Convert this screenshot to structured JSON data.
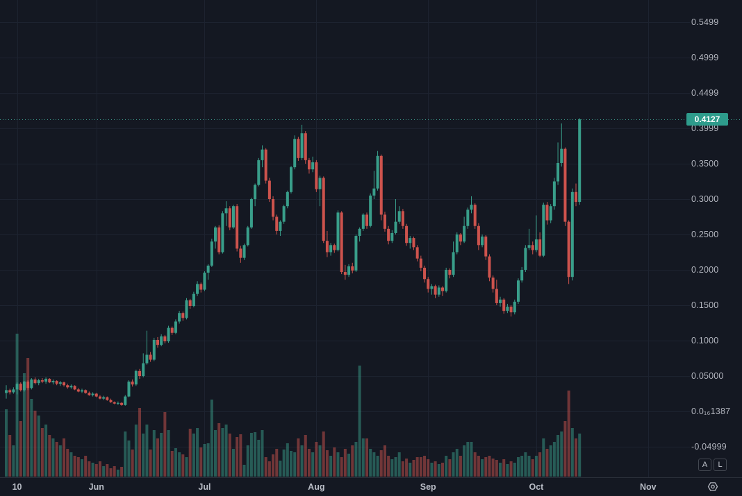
{
  "colors": {
    "background": "#141822",
    "grid": "#1d2330",
    "separator": "#2a2f3a",
    "axis_text": "#b2b5be",
    "up": "#399e8a",
    "down": "#cd534d",
    "up_volume": "rgba(57,158,138,0.50)",
    "down_volume": "rgba(205,83,77,0.50)",
    "price_line": "#3f9f90",
    "badge_bg": "#2e9c8c",
    "badge_text": "#ffffff"
  },
  "price_axis": {
    "labels": [
      {
        "text": "0.5499",
        "value": 0.5499
      },
      {
        "text": "0.4999",
        "value": 0.4999
      },
      {
        "text": "0.4499",
        "value": 0.4499
      },
      {
        "text": "0.3999",
        "value": 0.3999
      },
      {
        "text": "0.3500",
        "value": 0.35
      },
      {
        "text": "0.3000",
        "value": 0.3
      },
      {
        "text": "0.2500",
        "value": 0.25
      },
      {
        "text": "0.2000",
        "value": 0.2
      },
      {
        "text": "0.1500",
        "value": 0.15
      },
      {
        "text": "0.1000",
        "value": 0.1
      },
      {
        "text": "0.05000",
        "value": 0.05
      },
      {
        "text": "0.0₁₆1387",
        "value": 0.0
      },
      {
        "text": "-0.04999",
        "value": -0.04999
      }
    ],
    "current_price": {
      "text": "0.4127",
      "value": 0.4127
    }
  },
  "time_axis": {
    "ticks": [
      {
        "label": "10",
        "day": 3
      },
      {
        "label": "Jun",
        "day": 25
      },
      {
        "label": "Jul",
        "day": 55
      },
      {
        "label": "Aug",
        "day": 86
      },
      {
        "label": "Sep",
        "day": 117
      },
      {
        "label": "Oct",
        "day": 147
      },
      {
        "label": "Nov",
        "day": 178
      }
    ]
  },
  "controls": {
    "auto_label": "A",
    "log_label": "L",
    "settings_icon": "gear-icon"
  },
  "chart_data": {
    "type": "candlestick+volume",
    "title": "",
    "ohlc_columns": [
      "date",
      "open",
      "high",
      "low",
      "close",
      "volume"
    ],
    "x_range": [
      "May 7",
      "Oct 13"
    ],
    "y_range": [
      -0.05,
      0.55
    ],
    "grid": true,
    "last_price": 0.4127,
    "candles": [
      [
        "May 7",
        0.026,
        0.037,
        0.018,
        0.03,
        97
      ],
      [
        "May 8",
        0.03,
        0.032,
        0.024,
        0.027,
        60
      ],
      [
        "May 9",
        0.027,
        0.034,
        0.025,
        0.031,
        45
      ],
      [
        "May 10",
        0.031,
        0.041,
        0.024,
        0.039,
        206
      ],
      [
        "May 11",
        0.039,
        0.041,
        0.028,
        0.03,
        80
      ],
      [
        "May 12",
        0.03,
        0.043,
        0.028,
        0.042,
        149
      ],
      [
        "May 13",
        0.042,
        0.044,
        0.03,
        0.033,
        171
      ],
      [
        "May 14",
        0.033,
        0.047,
        0.031,
        0.045,
        112
      ],
      [
        "May 15",
        0.045,
        0.048,
        0.038,
        0.04,
        95
      ],
      [
        "May 16",
        0.04,
        0.046,
        0.037,
        0.044,
        88
      ],
      [
        "May 17",
        0.044,
        0.047,
        0.04,
        0.042,
        70
      ],
      [
        "May 18",
        0.042,
        0.048,
        0.039,
        0.046,
        75
      ],
      [
        "May 19",
        0.046,
        0.047,
        0.04,
        0.041,
        60
      ],
      [
        "May 20",
        0.041,
        0.045,
        0.038,
        0.043,
        55
      ],
      [
        "May 21",
        0.043,
        0.044,
        0.037,
        0.039,
        50
      ],
      [
        "May 22",
        0.039,
        0.043,
        0.036,
        0.041,
        45
      ],
      [
        "May 23",
        0.041,
        0.042,
        0.035,
        0.037,
        55
      ],
      [
        "May 24",
        0.037,
        0.039,
        0.032,
        0.034,
        40
      ],
      [
        "May 25",
        0.034,
        0.038,
        0.032,
        0.036,
        35
      ],
      [
        "May 26",
        0.036,
        0.037,
        0.03,
        0.031,
        30
      ],
      [
        "May 27",
        0.031,
        0.033,
        0.027,
        0.028,
        28
      ],
      [
        "May 28",
        0.028,
        0.032,
        0.026,
        0.03,
        25
      ],
      [
        "May 29",
        0.03,
        0.031,
        0.025,
        0.026,
        30
      ],
      [
        "May 30",
        0.026,
        0.028,
        0.022,
        0.023,
        22
      ],
      [
        "May 31",
        0.023,
        0.027,
        0.021,
        0.025,
        20
      ],
      [
        "Jun 1",
        0.025,
        0.026,
        0.02,
        0.021,
        18
      ],
      [
        "Jun 2",
        0.021,
        0.023,
        0.017,
        0.018,
        22
      ],
      [
        "Jun 3",
        0.018,
        0.022,
        0.016,
        0.02,
        15
      ],
      [
        "Jun 4",
        0.02,
        0.021,
        0.015,
        0.016,
        18
      ],
      [
        "Jun 5",
        0.016,
        0.018,
        0.012,
        0.013,
        12
      ],
      [
        "Jun 6",
        0.013,
        0.014,
        0.01,
        0.011,
        15
      ],
      [
        "Jun 7",
        0.011,
        0.014,
        0.009,
        0.012,
        10
      ],
      [
        "Jun 8",
        0.012,
        0.013,
        0.008,
        0.009,
        14
      ],
      [
        "Jun 9",
        0.009,
        0.023,
        0.008,
        0.021,
        65
      ],
      [
        "Jun 10",
        0.021,
        0.044,
        0.02,
        0.042,
        52
      ],
      [
        "Jun 11",
        0.042,
        0.045,
        0.035,
        0.038,
        39
      ],
      [
        "Jun 12",
        0.038,
        0.059,
        0.036,
        0.057,
        75
      ],
      [
        "Jun 13",
        0.057,
        0.06,
        0.046,
        0.05,
        99
      ],
      [
        "Jun 14",
        0.05,
        0.082,
        0.048,
        0.068,
        62
      ],
      [
        "Jun 15",
        0.068,
        0.114,
        0.066,
        0.08,
        75
      ],
      [
        "Jun 16",
        0.08,
        0.084,
        0.07,
        0.073,
        39
      ],
      [
        "Jun 17",
        0.073,
        0.104,
        0.071,
        0.101,
        67
      ],
      [
        "Jun 18",
        0.101,
        0.105,
        0.09,
        0.094,
        55
      ],
      [
        "Jun 19",
        0.094,
        0.109,
        0.092,
        0.106,
        63
      ],
      [
        "Jun 20",
        0.106,
        0.108,
        0.096,
        0.099,
        93
      ],
      [
        "Jun 21",
        0.099,
        0.121,
        0.097,
        0.118,
        67
      ],
      [
        "Jun 22",
        0.118,
        0.12,
        0.108,
        0.111,
        37
      ],
      [
        "Jun 23",
        0.111,
        0.13,
        0.109,
        0.127,
        41
      ],
      [
        "Jun 24",
        0.127,
        0.142,
        0.124,
        0.139,
        35
      ],
      [
        "Jun 25",
        0.139,
        0.141,
        0.128,
        0.132,
        32
      ],
      [
        "Jun 26",
        0.132,
        0.16,
        0.13,
        0.157,
        28
      ],
      [
        "Jun 27",
        0.157,
        0.159,
        0.145,
        0.149,
        69
      ],
      [
        "Jun 28",
        0.149,
        0.169,
        0.147,
        0.166,
        62
      ],
      [
        "Jun 29",
        0.166,
        0.184,
        0.163,
        0.18,
        70
      ],
      [
        "Jun 30",
        0.18,
        0.182,
        0.168,
        0.172,
        42
      ],
      [
        "Jul 1",
        0.172,
        0.198,
        0.17,
        0.196,
        47
      ],
      [
        "Jul 2",
        0.196,
        0.208,
        0.186,
        0.206,
        48
      ],
      [
        "Jul 3",
        0.206,
        0.244,
        0.204,
        0.24,
        111
      ],
      [
        "Jul 4",
        0.24,
        0.262,
        0.23,
        0.26,
        67
      ],
      [
        "Jul 5",
        0.26,
        0.263,
        0.222,
        0.225,
        77
      ],
      [
        "Jul 6",
        0.225,
        0.283,
        0.223,
        0.28,
        70
      ],
      [
        "Jul 7",
        0.28,
        0.297,
        0.262,
        0.287,
        75
      ],
      [
        "Jul 8",
        0.287,
        0.29,
        0.256,
        0.26,
        62
      ],
      [
        "Jul 9",
        0.26,
        0.292,
        0.258,
        0.29,
        40
      ],
      [
        "Jul 10",
        0.29,
        0.293,
        0.226,
        0.23,
        57
      ],
      [
        "Jul 11",
        0.23,
        0.234,
        0.21,
        0.217,
        61
      ],
      [
        "Jul 12",
        0.217,
        0.237,
        0.214,
        0.235,
        17
      ],
      [
        "Jul 13",
        0.235,
        0.262,
        0.233,
        0.26,
        45
      ],
      [
        "Jul 14",
        0.26,
        0.302,
        0.258,
        0.3,
        63
      ],
      [
        "Jul 15",
        0.3,
        0.322,
        0.29,
        0.32,
        64
      ],
      [
        "Jul 16",
        0.32,
        0.358,
        0.318,
        0.355,
        53
      ],
      [
        "Jul 17",
        0.355,
        0.376,
        0.345,
        0.37,
        67
      ],
      [
        "Jul 18",
        0.37,
        0.372,
        0.322,
        0.326,
        28
      ],
      [
        "Jul 19",
        0.326,
        0.33,
        0.296,
        0.3,
        22
      ],
      [
        "Jul 20",
        0.3,
        0.304,
        0.27,
        0.275,
        32
      ],
      [
        "Jul 21",
        0.275,
        0.278,
        0.25,
        0.255,
        40
      ],
      [
        "Jul 22",
        0.255,
        0.27,
        0.248,
        0.268,
        23
      ],
      [
        "Jul 23",
        0.268,
        0.292,
        0.265,
        0.29,
        39
      ],
      [
        "Jul 24",
        0.29,
        0.312,
        0.287,
        0.31,
        48
      ],
      [
        "Jul 25",
        0.31,
        0.347,
        0.308,
        0.345,
        37
      ],
      [
        "Jul 26",
        0.345,
        0.39,
        0.342,
        0.385,
        35
      ],
      [
        "Jul 27",
        0.385,
        0.388,
        0.354,
        0.358,
        55
      ],
      [
        "Jul 28",
        0.358,
        0.405,
        0.355,
        0.393,
        45
      ],
      [
        "Jul 29",
        0.393,
        0.396,
        0.35,
        0.355,
        60
      ],
      [
        "Jul 30",
        0.355,
        0.358,
        0.336,
        0.342,
        40
      ],
      [
        "Jul 31",
        0.342,
        0.36,
        0.338,
        0.352,
        35
      ],
      [
        "Aug 1",
        0.352,
        0.355,
        0.31,
        0.314,
        50
      ],
      [
        "Aug 2",
        0.314,
        0.333,
        0.29,
        0.33,
        45
      ],
      [
        "Aug 3",
        0.33,
        0.332,
        0.238,
        0.241,
        65
      ],
      [
        "Aug 4",
        0.241,
        0.255,
        0.218,
        0.225,
        38
      ],
      [
        "Aug 5",
        0.225,
        0.238,
        0.22,
        0.235,
        30
      ],
      [
        "Aug 6",
        0.235,
        0.237,
        0.224,
        0.228,
        42
      ],
      [
        "Aug 7",
        0.228,
        0.284,
        0.226,
        0.281,
        35
      ],
      [
        "Aug 8",
        0.281,
        0.283,
        0.194,
        0.197,
        28
      ],
      [
        "Aug 9",
        0.197,
        0.207,
        0.186,
        0.193,
        40
      ],
      [
        "Aug 10",
        0.193,
        0.208,
        0.19,
        0.205,
        33
      ],
      [
        "Aug 11",
        0.205,
        0.21,
        0.195,
        0.199,
        45
      ],
      [
        "Aug 12",
        0.199,
        0.25,
        0.197,
        0.248,
        50
      ],
      [
        "Aug 13",
        0.248,
        0.26,
        0.24,
        0.258,
        160
      ],
      [
        "Aug 14",
        0.258,
        0.28,
        0.255,
        0.278,
        55
      ],
      [
        "Aug 15",
        0.278,
        0.281,
        0.258,
        0.262,
        55
      ],
      [
        "Aug 16",
        0.262,
        0.308,
        0.26,
        0.305,
        40
      ],
      [
        "Aug 17",
        0.305,
        0.34,
        0.3,
        0.315,
        35
      ],
      [
        "Aug 18",
        0.315,
        0.368,
        0.312,
        0.361,
        30
      ],
      [
        "Aug 19",
        0.361,
        0.363,
        0.27,
        0.278,
        38
      ],
      [
        "Aug 20",
        0.278,
        0.282,
        0.254,
        0.258,
        45
      ],
      [
        "Aug 21",
        0.258,
        0.262,
        0.236,
        0.241,
        30
      ],
      [
        "Aug 22",
        0.241,
        0.256,
        0.238,
        0.252,
        25
      ],
      [
        "Aug 23",
        0.252,
        0.3,
        0.25,
        0.268,
        28
      ],
      [
        "Aug 24",
        0.268,
        0.29,
        0.265,
        0.283,
        35
      ],
      [
        "Aug 25",
        0.283,
        0.286,
        0.258,
        0.262,
        22
      ],
      [
        "Aug 26",
        0.262,
        0.265,
        0.234,
        0.238,
        26
      ],
      [
        "Aug 27",
        0.238,
        0.248,
        0.23,
        0.245,
        20
      ],
      [
        "Aug 28",
        0.245,
        0.247,
        0.228,
        0.232,
        24
      ],
      [
        "Aug 29",
        0.232,
        0.235,
        0.212,
        0.216,
        28
      ],
      [
        "Aug 30",
        0.216,
        0.22,
        0.198,
        0.203,
        28
      ],
      [
        "Aug 31",
        0.203,
        0.206,
        0.182,
        0.187,
        30
      ],
      [
        "Sep 1",
        0.187,
        0.19,
        0.168,
        0.173,
        25
      ],
      [
        "Sep 2",
        0.173,
        0.18,
        0.165,
        0.177,
        20
      ],
      [
        "Sep 3",
        0.177,
        0.179,
        0.16,
        0.165,
        22
      ],
      [
        "Sep 4",
        0.165,
        0.178,
        0.162,
        0.175,
        18
      ],
      [
        "Sep 5",
        0.175,
        0.177,
        0.163,
        0.17,
        20
      ],
      [
        "Sep 6",
        0.17,
        0.203,
        0.168,
        0.2,
        30
      ],
      [
        "Sep 7",
        0.2,
        0.202,
        0.188,
        0.193,
        25
      ],
      [
        "Sep 8",
        0.193,
        0.24,
        0.19,
        0.225,
        35
      ],
      [
        "Sep 9",
        0.225,
        0.253,
        0.222,
        0.25,
        40
      ],
      [
        "Sep 10",
        0.25,
        0.252,
        0.235,
        0.24,
        30
      ],
      [
        "Sep 11",
        0.24,
        0.275,
        0.238,
        0.262,
        45
      ],
      [
        "Sep 12",
        0.262,
        0.288,
        0.258,
        0.285,
        50
      ],
      [
        "Sep 13",
        0.285,
        0.304,
        0.28,
        0.292,
        50
      ],
      [
        "Sep 14",
        0.292,
        0.294,
        0.258,
        0.262,
        35
      ],
      [
        "Sep 15",
        0.262,
        0.266,
        0.228,
        0.235,
        30
      ],
      [
        "Sep 16",
        0.235,
        0.25,
        0.232,
        0.247,
        25
      ],
      [
        "Sep 17",
        0.247,
        0.249,
        0.214,
        0.219,
        28
      ],
      [
        "Sep 18",
        0.219,
        0.222,
        0.184,
        0.189,
        30
      ],
      [
        "Sep 19",
        0.189,
        0.192,
        0.168,
        0.173,
        26
      ],
      [
        "Sep 20",
        0.173,
        0.186,
        0.15,
        0.153,
        24
      ],
      [
        "Sep 21",
        0.153,
        0.162,
        0.148,
        0.158,
        20
      ],
      [
        "Sep 22",
        0.158,
        0.16,
        0.138,
        0.142,
        25
      ],
      [
        "Sep 23",
        0.142,
        0.152,
        0.139,
        0.148,
        18
      ],
      [
        "Sep 24",
        0.148,
        0.15,
        0.134,
        0.14,
        22
      ],
      [
        "Sep 25",
        0.14,
        0.158,
        0.137,
        0.155,
        20
      ],
      [
        "Sep 26",
        0.155,
        0.188,
        0.152,
        0.185,
        28
      ],
      [
        "Sep 27",
        0.185,
        0.204,
        0.182,
        0.2,
        30
      ],
      [
        "Sep 28",
        0.2,
        0.235,
        0.197,
        0.231,
        35
      ],
      [
        "Sep 29",
        0.231,
        0.258,
        0.228,
        0.235,
        30
      ],
      [
        "Sep 30",
        0.235,
        0.24,
        0.222,
        0.228,
        25
      ],
      [
        "Oct 1",
        0.228,
        0.277,
        0.225,
        0.243,
        30
      ],
      [
        "Oct 2",
        0.243,
        0.253,
        0.218,
        0.22,
        35
      ],
      [
        "Oct 3",
        0.22,
        0.295,
        0.218,
        0.292,
        55
      ],
      [
        "Oct 4",
        0.292,
        0.296,
        0.264,
        0.27,
        40
      ],
      [
        "Oct 5",
        0.27,
        0.293,
        0.266,
        0.29,
        45
      ],
      [
        "Oct 6",
        0.29,
        0.33,
        0.285,
        0.325,
        50
      ],
      [
        "Oct 7",
        0.325,
        0.38,
        0.32,
        0.351,
        60
      ],
      [
        "Oct 8",
        0.351,
        0.407,
        0.346,
        0.371,
        65
      ],
      [
        "Oct 9",
        0.371,
        0.373,
        0.262,
        0.268,
        80
      ],
      [
        "Oct 10",
        0.268,
        0.27,
        0.18,
        0.19,
        124
      ],
      [
        "Oct 11",
        0.19,
        0.315,
        0.185,
        0.31,
        70
      ],
      [
        "Oct 12",
        0.31,
        0.322,
        0.29,
        0.296,
        55
      ],
      [
        "Oct 13",
        0.296,
        0.4143,
        0.292,
        0.4127,
        62
      ]
    ]
  }
}
